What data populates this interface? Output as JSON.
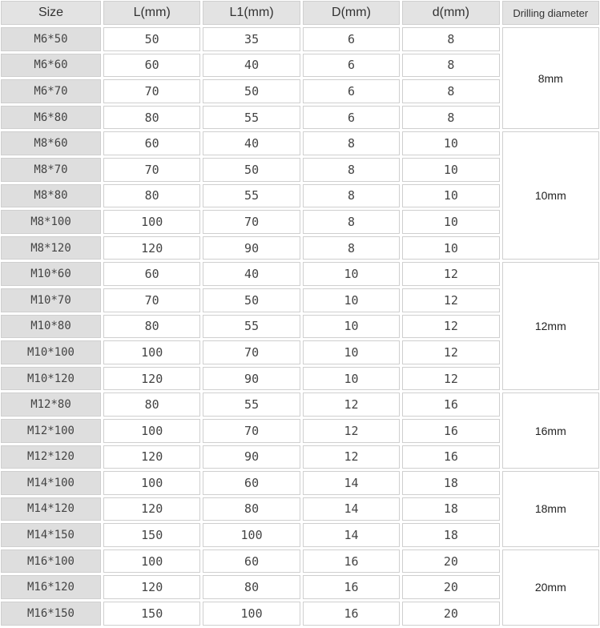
{
  "headers": [
    "Size",
    "L(mm)",
    "L1(mm)",
    "D(mm)",
    "d(mm)",
    "Drilling diameter"
  ],
  "groups": [
    {
      "drilling": "8mm",
      "rows": [
        [
          "M6*50",
          "50",
          "35",
          "6",
          "8"
        ],
        [
          "M6*60",
          "60",
          "40",
          "6",
          "8"
        ],
        [
          "M6*70",
          "70",
          "50",
          "6",
          "8"
        ],
        [
          "M6*80",
          "80",
          "55",
          "6",
          "8"
        ]
      ]
    },
    {
      "drilling": "10mm",
      "rows": [
        [
          "M8*60",
          "60",
          "40",
          "8",
          "10"
        ],
        [
          "M8*70",
          "70",
          "50",
          "8",
          "10"
        ],
        [
          "M8*80",
          "80",
          "55",
          "8",
          "10"
        ],
        [
          "M8*100",
          "100",
          "70",
          "8",
          "10"
        ],
        [
          "M8*120",
          "120",
          "90",
          "8",
          "10"
        ]
      ]
    },
    {
      "drilling": "12mm",
      "rows": [
        [
          "M10*60",
          "60",
          "40",
          "10",
          "12"
        ],
        [
          "M10*70",
          "70",
          "50",
          "10",
          "12"
        ],
        [
          "M10*80",
          "80",
          "55",
          "10",
          "12"
        ],
        [
          "M10*100",
          "100",
          "70",
          "10",
          "12"
        ],
        [
          "M10*120",
          "120",
          "90",
          "10",
          "12"
        ]
      ]
    },
    {
      "drilling": "16mm",
      "rows": [
        [
          "M12*80",
          "80",
          "55",
          "12",
          "16"
        ],
        [
          "M12*100",
          "100",
          "70",
          "12",
          "16"
        ],
        [
          "M12*120",
          "120",
          "90",
          "12",
          "16"
        ]
      ]
    },
    {
      "drilling": "18mm",
      "rows": [
        [
          "M14*100",
          "100",
          "60",
          "14",
          "18"
        ],
        [
          "M14*120",
          "120",
          "80",
          "14",
          "18"
        ],
        [
          "M14*150",
          "150",
          "100",
          "14",
          "18"
        ]
      ]
    },
    {
      "drilling": "20mm",
      "rows": [
        [
          "M16*100",
          "100",
          "60",
          "16",
          "20"
        ],
        [
          "M16*120",
          "120",
          "80",
          "16",
          "20"
        ],
        [
          "M16*150",
          "150",
          "100",
          "16",
          "20"
        ]
      ]
    }
  ]
}
